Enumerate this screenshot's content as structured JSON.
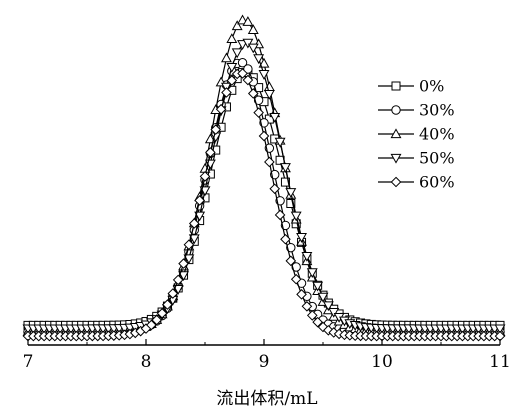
{
  "chart_data": {
    "type": "line",
    "title": "",
    "xlabel": "流出体积/mL",
    "ylabel": "",
    "xlim": [
      7,
      11
    ],
    "ylim": [
      0,
      1.0
    ],
    "xticks": [
      7,
      8,
      9,
      10,
      11
    ],
    "x_tick_labels": [
      "7",
      "8",
      "9",
      "10",
      "11"
    ],
    "y_axis_shown": false,
    "grid": false,
    "legend_position": "right",
    "marker_color": "#000000",
    "series": [
      {
        "name": "0%",
        "marker": "square",
        "baseline": 0.045,
        "peak_x": 8.84,
        "peak_height": 0.78,
        "width_left": 0.29,
        "width_right": 0.32
      },
      {
        "name": "30%",
        "marker": "circle",
        "baseline": 0.025,
        "peak_x": 8.8,
        "peak_height": 0.83,
        "width_left": 0.28,
        "width_right": 0.28
      },
      {
        "name": "40%",
        "marker": "triangle-up",
        "baseline": 0.025,
        "peak_x": 8.83,
        "peak_height": 0.96,
        "width_left": 0.29,
        "width_right": 0.31
      },
      {
        "name": "50%",
        "marker": "triangle-down",
        "baseline": 0.035,
        "peak_x": 8.85,
        "peak_height": 0.88,
        "width_left": 0.29,
        "width_right": 0.31
      },
      {
        "name": "60%",
        "marker": "diamond",
        "baseline": 0.012,
        "peak_x": 8.8,
        "peak_height": 0.81,
        "width_left": 0.3,
        "width_right": 0.27
      }
    ]
  }
}
